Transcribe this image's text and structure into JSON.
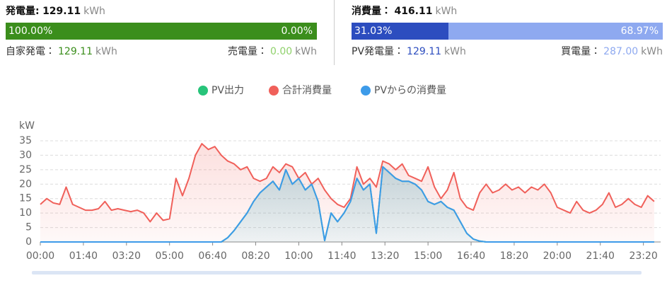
{
  "summary": {
    "generation": {
      "label": "発電量:",
      "value": "129.11",
      "unit": "kWh",
      "bar": [
        {
          "value": 100,
          "label": "100.00%",
          "color": "#3b8e1c"
        },
        {
          "value": 0,
          "label": "0.00%",
          "color": "#8fd16b"
        }
      ],
      "details": [
        {
          "label": "自家発電：",
          "value": "129.11",
          "unit": "kWh",
          "color": "#3b8e1c"
        },
        {
          "label": "売電量：",
          "value": "0.00",
          "unit": "kWh",
          "color": "#8fd16b"
        }
      ]
    },
    "consumption": {
      "label": "消費量：",
      "value": "416.11",
      "unit": "kWh",
      "bar": [
        {
          "value": 31.03,
          "label": "31.03%",
          "color": "#2c4dbf"
        },
        {
          "value": 68.97,
          "label": "68.97%",
          "color": "#8ea9f0"
        }
      ],
      "details": [
        {
          "label": "PV発電量：",
          "value": "129.11",
          "unit": "kWh",
          "color": "#2c4dbf"
        },
        {
          "label": "買電量：",
          "value": "287.00",
          "unit": "kWh",
          "color": "#8ea9f0"
        }
      ]
    }
  },
  "chart_data": {
    "type": "line",
    "area": true,
    "grid": true,
    "ylabel": "kW",
    "xlim": [
      0,
      1440
    ],
    "ylim": [
      0,
      35
    ],
    "yticks": [
      0,
      5,
      10,
      15,
      20,
      25,
      30,
      35
    ],
    "xticks": [
      {
        "value": 0,
        "label": "00:00"
      },
      {
        "value": 100,
        "label": "01:40"
      },
      {
        "value": 200,
        "label": "03:20"
      },
      {
        "value": 300,
        "label": "05:00"
      },
      {
        "value": 400,
        "label": "06:40"
      },
      {
        "value": 500,
        "label": "08:20"
      },
      {
        "value": 600,
        "label": "10:00"
      },
      {
        "value": 700,
        "label": "11:40"
      },
      {
        "value": 800,
        "label": "13:20"
      },
      {
        "value": 900,
        "label": "15:00"
      },
      {
        "value": 1000,
        "label": "16:40"
      },
      {
        "value": 1100,
        "label": "18:20"
      },
      {
        "value": 1200,
        "label": "20:00"
      },
      {
        "value": 1300,
        "label": "21:40"
      },
      {
        "value": 1400,
        "label": "23:20"
      }
    ],
    "x": [
      0,
      15,
      30,
      45,
      60,
      75,
      90,
      105,
      120,
      135,
      150,
      165,
      180,
      195,
      210,
      225,
      240,
      255,
      270,
      285,
      300,
      315,
      330,
      345,
      360,
      375,
      390,
      405,
      420,
      435,
      450,
      465,
      480,
      495,
      510,
      525,
      540,
      555,
      570,
      585,
      600,
      615,
      630,
      645,
      660,
      675,
      690,
      705,
      720,
      735,
      750,
      765,
      780,
      795,
      810,
      825,
      840,
      855,
      870,
      885,
      900,
      915,
      930,
      945,
      960,
      975,
      990,
      1005,
      1020,
      1035,
      1050,
      1065,
      1080,
      1095,
      1110,
      1125,
      1140,
      1155,
      1170,
      1185,
      1200,
      1215,
      1230,
      1245,
      1260,
      1275,
      1290,
      1305,
      1320,
      1335,
      1350,
      1365,
      1380,
      1395,
      1410,
      1425
    ],
    "series": [
      {
        "name": "PV出力",
        "color": "#27c47a",
        "values": [
          0,
          0,
          0,
          0,
          0,
          0,
          0,
          0,
          0,
          0,
          0,
          0,
          0,
          0,
          0,
          0,
          0,
          0,
          0,
          0,
          0,
          0,
          0,
          0,
          0,
          0,
          0,
          0,
          0,
          1.5,
          4,
          7,
          10,
          14,
          17,
          19,
          21,
          18,
          25,
          20,
          22,
          18,
          20,
          14,
          0.5,
          10,
          7,
          10,
          14,
          22,
          18,
          20,
          3,
          26,
          24,
          22,
          21,
          21,
          20,
          18,
          14,
          13,
          14,
          12,
          11,
          7,
          3,
          1,
          0.3,
          0,
          0,
          0,
          0,
          0,
          0,
          0,
          0,
          0,
          0,
          0,
          0,
          0,
          0,
          0,
          0,
          0,
          0,
          0,
          0,
          0,
          0,
          0,
          0,
          0,
          0,
          0
        ]
      },
      {
        "name": "合計消費量",
        "color": "#f0605a",
        "values": [
          13,
          15,
          13.5,
          13,
          19,
          13,
          12,
          11,
          11,
          11.5,
          14,
          11,
          11.5,
          11,
          10.5,
          11,
          10,
          7,
          10,
          7.5,
          8,
          22,
          16,
          22,
          30,
          34,
          32,
          33,
          30,
          28,
          27,
          25,
          26,
          22,
          21,
          22,
          26,
          24,
          27,
          26,
          22,
          24,
          20,
          22,
          18,
          15,
          13,
          12,
          15,
          26,
          20,
          22,
          19,
          28,
          27,
          25,
          27,
          23,
          22,
          21,
          26,
          19,
          15,
          18,
          24,
          15,
          12,
          11,
          17,
          20,
          17,
          18,
          20,
          18,
          19,
          17,
          19,
          18,
          20,
          17,
          12,
          11,
          10,
          14,
          11,
          10,
          11,
          13,
          17,
          12,
          13,
          15,
          13,
          12,
          16,
          14
        ]
      },
      {
        "name": "PVからの消費量",
        "color": "#3d9be9",
        "values": [
          0,
          0,
          0,
          0,
          0,
          0,
          0,
          0,
          0,
          0,
          0,
          0,
          0,
          0,
          0,
          0,
          0,
          0,
          0,
          0,
          0,
          0,
          0,
          0,
          0,
          0,
          0,
          0,
          0,
          1.5,
          4,
          7,
          10,
          14,
          17,
          19,
          21,
          18,
          25,
          20,
          22,
          18,
          20,
          14,
          0.5,
          10,
          7,
          10,
          14,
          22,
          18,
          20,
          3,
          26,
          24,
          22,
          21,
          21,
          20,
          18,
          14,
          13,
          14,
          12,
          11,
          7,
          3,
          1,
          0.3,
          0,
          0,
          0,
          0,
          0,
          0,
          0,
          0,
          0,
          0,
          0,
          0,
          0,
          0,
          0,
          0,
          0,
          0,
          0,
          0,
          0,
          0,
          0,
          0,
          0,
          0,
          0
        ]
      }
    ]
  }
}
